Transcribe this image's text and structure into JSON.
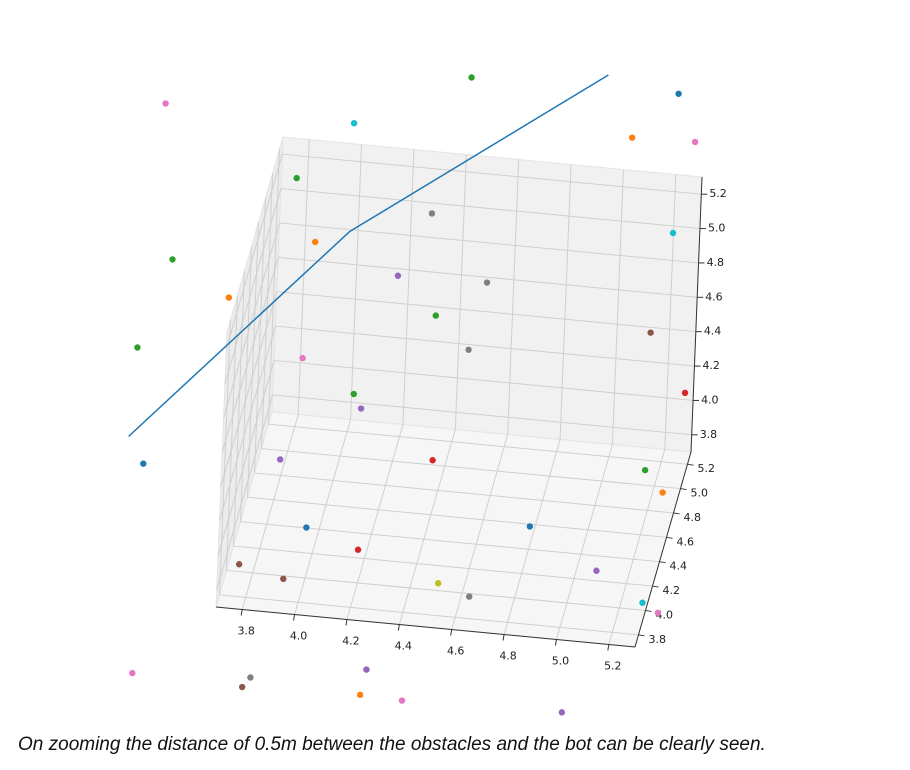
{
  "chart_data": {
    "type": "scatter3d",
    "xlim": [
      3.7,
      5.3
    ],
    "ylim": [
      3.7,
      5.3
    ],
    "zlim": [
      3.7,
      5.3
    ],
    "xticks": [
      3.8,
      {
        "value": 4,
        "label": "4.0"
      },
      4.2,
      4.4,
      4.6,
      4.8,
      {
        "value": 5,
        "label": "5.0"
      },
      5.2
    ],
    "yticks": [
      3.8,
      {
        "value": 4,
        "label": "4.0"
      },
      4.2,
      4.4,
      4.6,
      4.8,
      {
        "value": 5,
        "label": "5.0"
      },
      5.2
    ],
    "zticks": [
      3.8,
      {
        "value": 4,
        "label": "4.0"
      },
      4.2,
      4.4,
      4.6,
      4.8,
      {
        "value": 5,
        "label": "5.0"
      },
      5.2
    ],
    "grid": true,
    "points": {
      "x": [
        3.34,
        4.5,
        4.06,
        5.29,
        5.12,
        5.36,
        3.85,
        4.37,
        3.93,
        5.29,
        3.39,
        4.25,
        4.59,
        3.61,
        4.4,
        5.22,
        3.27,
        4.53,
        3.9,
        4.1,
        4.13,
        5.36,
        3.31,
        4.41,
        3.83,
        5.22,
        5.29,
        3.94,
        4.79,
        4.14,
        3.69,
        5.05,
        3.86,
        4.45,
        4.57,
        5.23,
        5.29,
        3.3,
        3.75,
        3.72,
        4.19,
        4.17,
        4.33,
        4.94
      ],
      "y": [
        4.5,
        4.5,
        4.5,
        4.5,
        4.5,
        4.5,
        4.5,
        4.5,
        4.5,
        4.5,
        4.5,
        4.5,
        4.5,
        4.5,
        4.5,
        4.5,
        4.5,
        4.5,
        4.5,
        4.5,
        4.5,
        4.5,
        4.5,
        4.5,
        4.5,
        4.5,
        4.5,
        4.5,
        4.5,
        4.5,
        4.5,
        4.5,
        4.5,
        4.5,
        4.5,
        4.5,
        4.5,
        4.5,
        4.5,
        4.5,
        4.5,
        4.5,
        4.5,
        4.5
      ],
      "z": [
        6.01,
        6.33,
        6.0,
        6.35,
        6.07,
        6.08,
        5.65,
        5.52,
        5.29,
        5.54,
        5.11,
        5.14,
        5.15,
        4.92,
        4.93,
        4.95,
        4.58,
        4.75,
        4.61,
        4.43,
        4.35,
        4.62,
        3.91,
        4.09,
        4.01,
        4.15,
        4.03,
        3.63,
        3.76,
        3.53,
        3.38,
        3.54,
        3.32,
        3.38,
        3.32,
        3.38,
        3.33,
        2.69,
        2.73,
        2.67,
        2.84,
        2.69,
        2.68,
        2.7
      ],
      "colors": [
        "#e377c2",
        "#2ca02c",
        "#17becf",
        "#1f77b4",
        "#ff7f0e",
        "#e377c2",
        "#2ca02c",
        "#7f7f7f",
        "#ff7f0e",
        "#17becf",
        "#2ca02c",
        "#9467bd",
        "#7f7f7f",
        "#ff7f0e",
        "#2ca02c",
        "#8c564b",
        "#2ca02c",
        "#7f7f7f",
        "#e377c2",
        "#2ca02c",
        "#9467bd",
        "#d62728",
        "#1f77b4",
        "#d62728",
        "#9467bd",
        "#2ca02c",
        "#ff7f0e",
        "#1f77b4",
        "#1f77b4",
        "#d62728",
        "#8c564b",
        "#9467bd",
        "#8c564b",
        "#bcbd22",
        "#7f7f7f",
        "#17becf",
        "#e377c2",
        "#e377c2",
        "#7f7f7f",
        "#8c564b",
        "#9467bd",
        "#ff7f0e",
        "#e377c2",
        "#9467bd"
      ]
    },
    "line": {
      "color": "#1f77b4",
      "x": [
        3.25,
        4.06,
        5.02
      ],
      "y": [
        4.5,
        4.5,
        4.5
      ],
      "z": [
        4.06,
        5.37,
        6.42
      ]
    }
  },
  "caption": "On zooming the distance of 0.5m between the obstacles and the bot can be clearly seen."
}
